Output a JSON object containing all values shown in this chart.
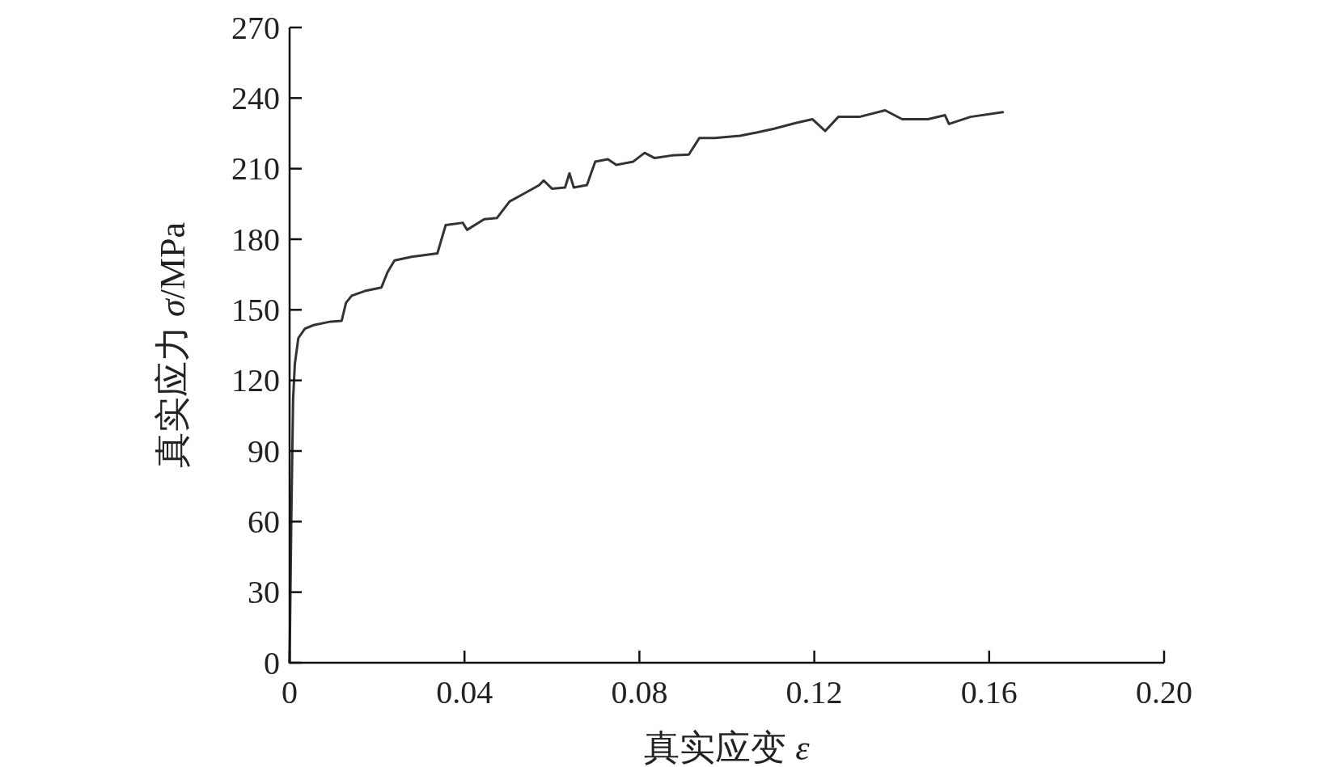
{
  "chart_data": {
    "type": "line",
    "xlabel": "真实应变 ε",
    "ylabel": "真实应力 σ/MPa",
    "xlim": [
      0,
      0.2
    ],
    "xticks": [
      0,
      0.04,
      0.08,
      0.12,
      0.16,
      {
        "value": 0.2,
        "label": "0.20"
      }
    ],
    "ylim": [
      0,
      270
    ],
    "yticks": [
      0,
      30,
      60,
      90,
      120,
      150,
      180,
      210,
      240,
      270
    ],
    "grid": false,
    "series": [
      {
        "color": "#333333",
        "x": [
          0,
          0.0004,
          0.0008,
          0.0012,
          0.002,
          0.0035,
          0.0055,
          0.0094,
          0.0119,
          0.0129,
          0.0142,
          0.0172,
          0.021,
          0.0224,
          0.024,
          0.0279,
          0.0338,
          0.0357,
          0.0396,
          0.0406,
          0.0445,
          0.0474,
          0.0503,
          0.0542,
          0.0571,
          0.0581,
          0.06,
          0.063,
          0.064,
          0.065,
          0.068,
          0.0699,
          0.0728,
          0.0747,
          0.0786,
          0.0812,
          0.0835,
          0.0874,
          0.0913,
          0.0937,
          0.0972,
          0.103,
          0.107,
          0.1108,
          0.1157,
          0.1196,
          0.1225,
          0.1255,
          0.1303,
          0.1362,
          0.1401,
          0.146,
          0.1499,
          0.1508,
          0.1557,
          0.1631
        ],
        "values": [
          0,
          62,
          112,
          127,
          138,
          142,
          143.5,
          145,
          145.3,
          153,
          156,
          158,
          159.5,
          166,
          171,
          172.5,
          174,
          186,
          187,
          184,
          188.5,
          189,
          196,
          200,
          203,
          205,
          201.5,
          202,
          208,
          202,
          203,
          213,
          214,
          211.6,
          213,
          216.7,
          214.5,
          215.6,
          216,
          223,
          223,
          224,
          225.4,
          227,
          229.4,
          231,
          226,
          232,
          232,
          234.8,
          231,
          231,
          232.7,
          229,
          232,
          234
        ]
      }
    ]
  }
}
